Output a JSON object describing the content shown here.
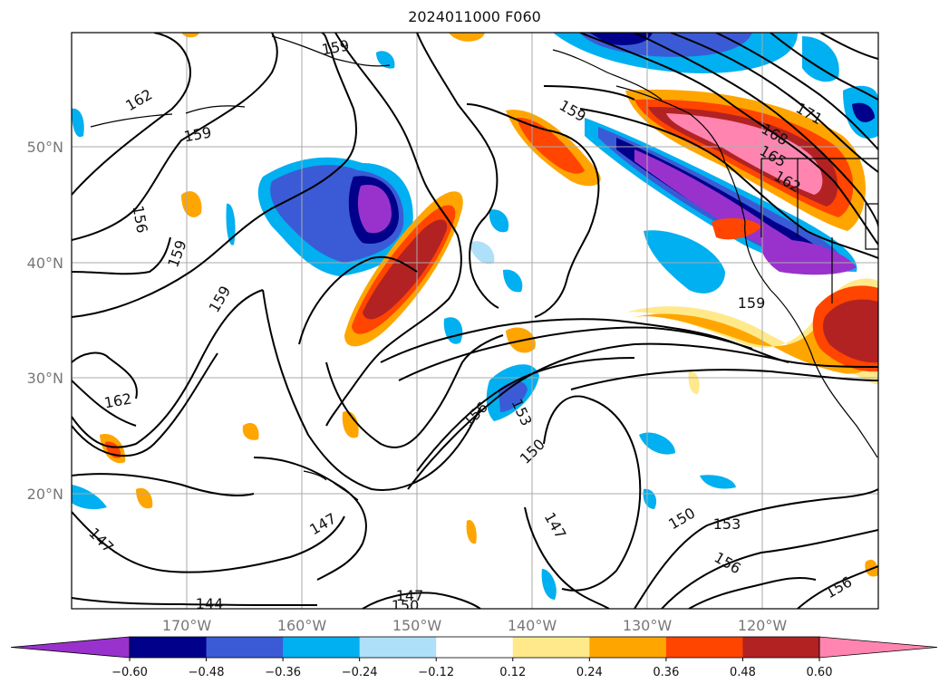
{
  "title": "2024011000 F060",
  "map": {
    "lat_labels": [
      "50°N",
      "40°N",
      "30°N",
      "20°N"
    ],
    "lon_labels": [
      "170°W",
      "160°W",
      "150°W",
      "140°W",
      "130°W",
      "120°W"
    ],
    "contour_labels": [
      "162",
      "159",
      "159",
      "156",
      "159",
      "159",
      "162",
      "168",
      "165",
      "171",
      "162",
      "159",
      "156",
      "153",
      "150",
      "147",
      "147",
      "144",
      "147",
      "150",
      "147",
      "150",
      "153",
      "156",
      "156",
      "159"
    ],
    "line_color": "#000000",
    "land_outline": true,
    "grid": true
  },
  "colorbar": {
    "ticks": [
      "−0.60",
      "−0.48",
      "−0.36",
      "−0.24",
      "−0.12",
      "0.12",
      "0.24",
      "0.36",
      "0.48",
      "0.60"
    ],
    "colors": [
      "#9932cc",
      "#00008b",
      "#3b5bd6",
      "#00b0f0",
      "#aee0fa",
      "#ffffff",
      "#ffe98a",
      "#ffa500",
      "#ff4500",
      "#b22222",
      "#ff85b0"
    ],
    "extend": "both"
  }
}
